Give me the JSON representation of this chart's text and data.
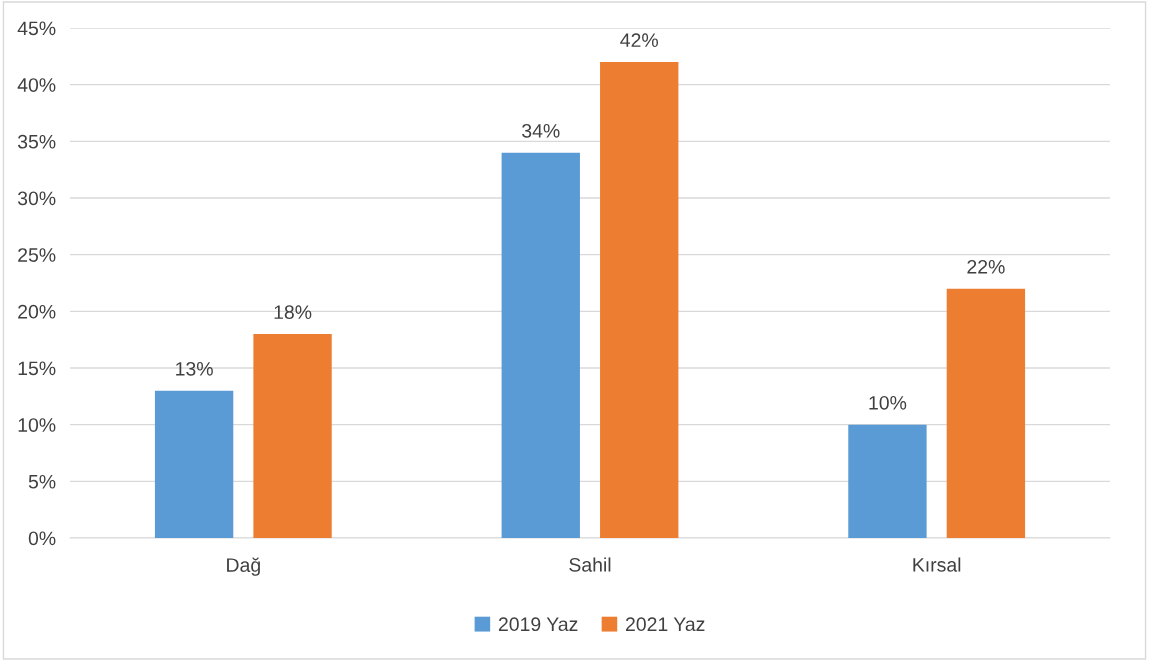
{
  "chart_data": {
    "type": "bar",
    "categories": [
      "Dağ",
      "Sahil",
      "Kırsal"
    ],
    "series": [
      {
        "name": "2019 Yaz",
        "color": "#5b9bd5",
        "values": [
          13,
          34,
          10
        ],
        "value_labels": [
          "13%",
          "34%",
          "10%"
        ]
      },
      {
        "name": "2021 Yaz",
        "color": "#ed7d31",
        "values": [
          18,
          42,
          22
        ],
        "value_labels": [
          "18%",
          "42%",
          "22%"
        ]
      }
    ],
    "ylim": [
      0,
      45
    ],
    "yticks": [
      {
        "value": 0,
        "label": "0%"
      },
      {
        "value": 5,
        "label": "5%"
      },
      {
        "value": 10,
        "label": "10%"
      },
      {
        "value": 15,
        "label": "15%"
      },
      {
        "value": 20,
        "label": "20%"
      },
      {
        "value": 25,
        "label": "25%"
      },
      {
        "value": 30,
        "label": "30%"
      },
      {
        "value": 35,
        "label": "35%"
      },
      {
        "value": 40,
        "label": "40%"
      },
      {
        "value": 45,
        "label": "45%"
      }
    ],
    "grid": "y",
    "legend": "bottom"
  }
}
